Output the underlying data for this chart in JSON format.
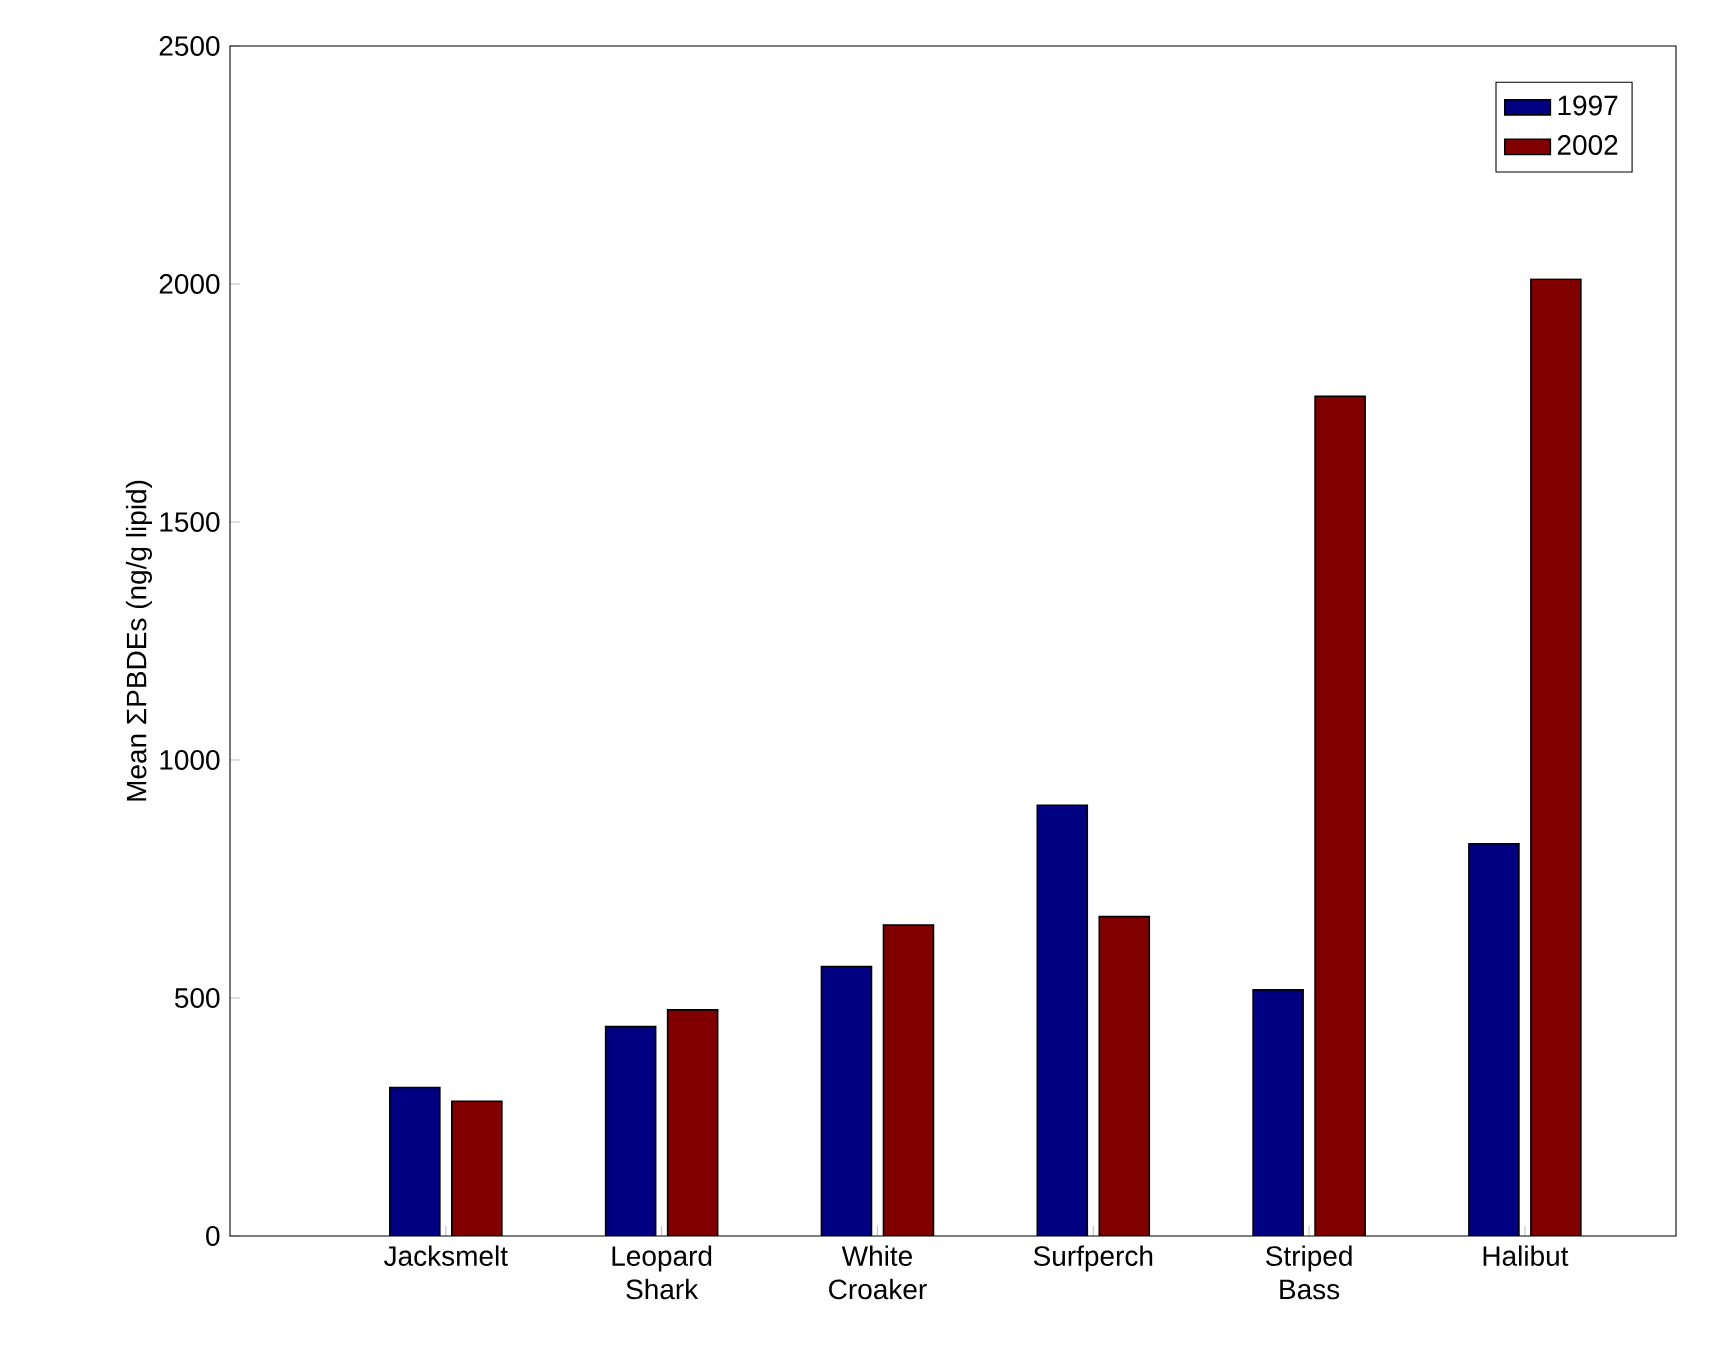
{
  "chart_data": {
    "type": "bar",
    "ylabel": "Mean ΣPBDEs (ng/g lipid)",
    "categories": [
      "Jacksmelt",
      "Leopard Shark",
      "White Croaker",
      "Surfperch",
      "Striped Bass",
      "Halibut"
    ],
    "series": [
      {
        "name": "1997",
        "color": "#000080",
        "values": [
          312,
          440,
          566,
          905,
          517,
          824
        ]
      },
      {
        "name": "2002",
        "color": "#800000",
        "values": [
          283,
          475,
          653,
          671,
          1764,
          2010
        ]
      }
    ],
    "ylim": [
      0,
      2500
    ],
    "yticks": [
      0,
      500,
      1000,
      1500,
      2000,
      2500
    ],
    "grid": false,
    "legend": "top right"
  }
}
